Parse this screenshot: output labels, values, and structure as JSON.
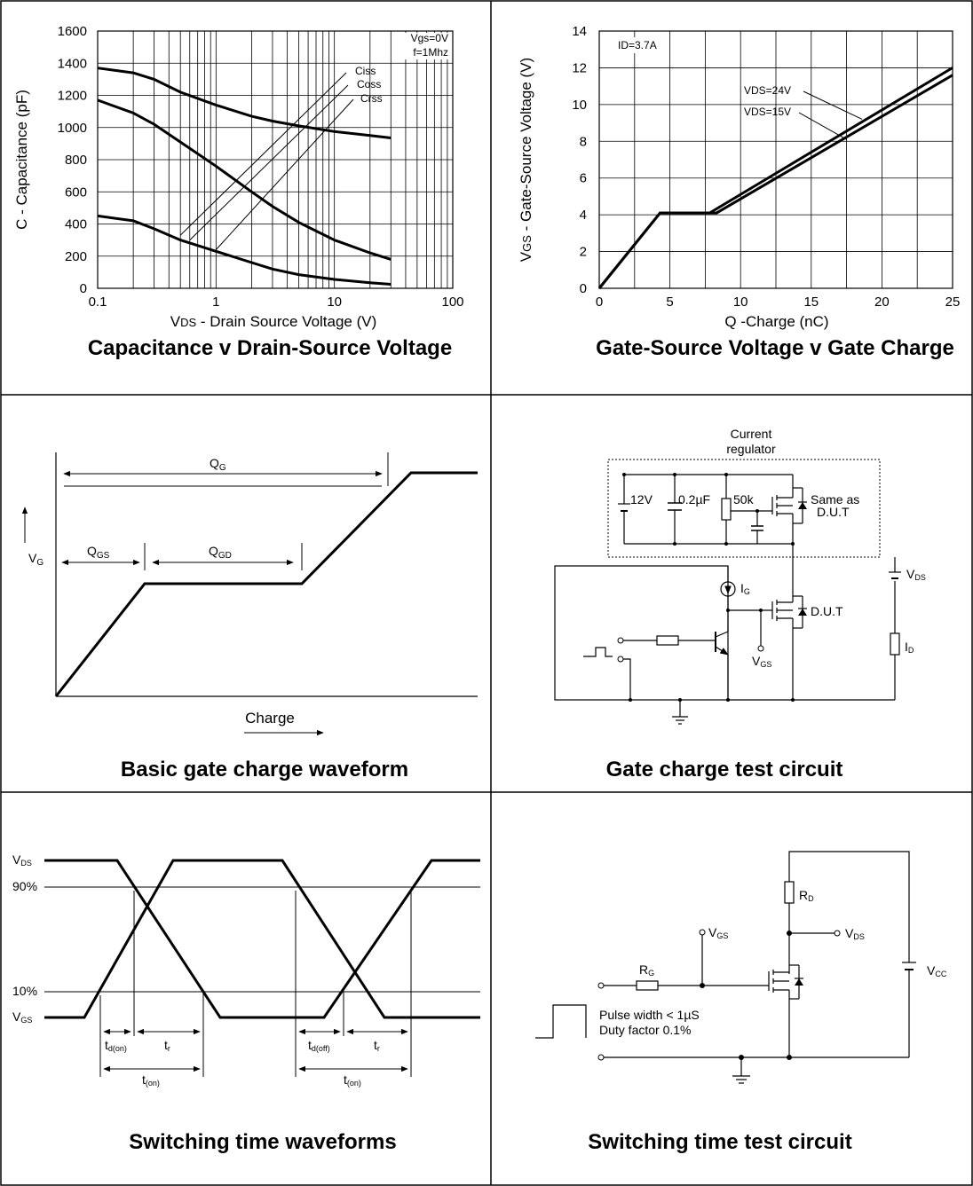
{
  "panels": {
    "capacitance": {
      "title": "Capacitance v Drain-Source Voltage",
      "xlabel_pre": "V",
      "xlabel_sub": "DS",
      "xlabel_post": " - Drain Source Voltage (V)",
      "ylabel": "C - Capacitance (pF)",
      "cond_vgs": "Vgs=0V",
      "cond_f": "f=1Mhz"
    },
    "gate_charge": {
      "title": "Gate-Source Voltage v Gate Charge",
      "xlabel": "Q -Charge (nC)",
      "ylabel_pre": "V",
      "ylabel_sub": "GS",
      "ylabel_post": " - Gate-Source Voltage (V)",
      "id_label": "ID=3.7A"
    },
    "waveform": {
      "title": "Basic gate charge waveform",
      "qg": "Q",
      "qg_sub": "G",
      "qgs": "Q",
      "qgs_sub": "GS",
      "qgd": "Q",
      "qgd_sub": "GD",
      "vg": "V",
      "vg_sub": "G",
      "charge": "Charge"
    },
    "gate_circuit": {
      "title": "Gate charge test circuit",
      "regulator_1": "Current",
      "regulator_2": "regulator",
      "v12": "12V",
      "cap": "0.2µF",
      "res": "50k",
      "same_1": "Same as",
      "same_2": "D.U.T",
      "dut": "D.U.T",
      "ig": "I",
      "ig_sub": "G",
      "vgs": "V",
      "vgs_sub": "GS",
      "vds": "V",
      "vds_sub": "DS",
      "id": "I",
      "id_sub": "D"
    },
    "switch_wave": {
      "title": "Switching time waveforms",
      "vds": "V",
      "vds_sub": "DS",
      "vgs": "V",
      "vgs_sub": "GS",
      "p90": "90%",
      "p10": "10%",
      "t": "t",
      "tdon_sub": "d(on)",
      "tr_sub": "r",
      "ton_sub": "(on)",
      "tdoff_sub": "d(off)"
    },
    "switch_circuit": {
      "title": "Switching time test circuit",
      "rd": "R",
      "rd_sub": "D",
      "rg": "R",
      "rg_sub": "G",
      "vgs": "V",
      "vgs_sub": "GS",
      "vds": "V",
      "vds_sub": "DS",
      "vcc": "V",
      "vcc_sub": "CC",
      "pulse": "Pulse width < 1µS",
      "duty": "Duty factor 0.1%"
    }
  },
  "chart_data": [
    {
      "type": "line",
      "x_scale": "log",
      "xlim": [
        0.1,
        100
      ],
      "ylim": [
        0,
        1600
      ],
      "x_ticks": [
        "0.1",
        "1",
        "10",
        "100"
      ],
      "y_ticks": [
        "0",
        "200",
        "400",
        "600",
        "800",
        "1000",
        "1200",
        "1400",
        "1600"
      ],
      "grid": true,
      "series": [
        {
          "name": "Ciss",
          "x": [
            0.1,
            0.2,
            0.3,
            0.5,
            1,
            2,
            3,
            5,
            10,
            20,
            30
          ],
          "y": [
            1370,
            1340,
            1300,
            1220,
            1140,
            1070,
            1040,
            1010,
            975,
            950,
            935
          ]
        },
        {
          "name": "Coss",
          "x": [
            0.1,
            0.2,
            0.3,
            0.5,
            1,
            2,
            3,
            5,
            10,
            20,
            30
          ],
          "y": [
            1170,
            1090,
            1020,
            910,
            760,
            600,
            510,
            410,
            300,
            220,
            180
          ]
        },
        {
          "name": "Crss",
          "x": [
            0.1,
            0.2,
            0.3,
            0.5,
            1,
            2,
            3,
            5,
            10,
            20,
            30
          ],
          "y": [
            450,
            420,
            370,
            300,
            230,
            160,
            120,
            85,
            55,
            35,
            25
          ]
        }
      ]
    },
    {
      "type": "line",
      "xlim": [
        0,
        25
      ],
      "ylim": [
        0,
        14
      ],
      "x_ticks": [
        "0",
        "5",
        "10",
        "15",
        "20",
        "25"
      ],
      "y_ticks": [
        "0",
        "2",
        "4",
        "6",
        "8",
        "10",
        "12",
        "14"
      ],
      "grid": true,
      "series": [
        {
          "name": "VDS=24V",
          "x": [
            0,
            4.3,
            7.8,
            25
          ],
          "y": [
            0,
            4.1,
            4.1,
            12.0
          ]
        },
        {
          "name": "VDS=15V",
          "x": [
            0,
            4.3,
            8.3,
            25
          ],
          "y": [
            0,
            4.1,
            4.1,
            11.6
          ]
        }
      ]
    }
  ]
}
